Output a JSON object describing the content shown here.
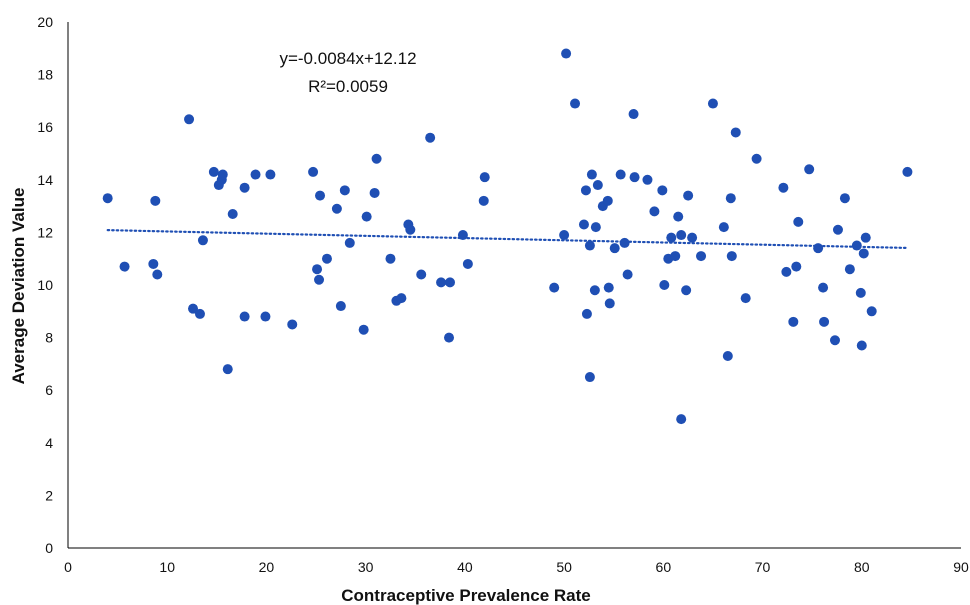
{
  "chart_data": {
    "type": "scatter",
    "xlabel": "Contraceptive Prevalence Rate",
    "ylabel": "Average Deviation Value",
    "xlim": [
      0,
      90
    ],
    "ylim": [
      0,
      20
    ],
    "x_ticks": [
      0,
      10,
      20,
      30,
      40,
      50,
      60,
      70,
      80,
      90
    ],
    "y_ticks": [
      0,
      2,
      4,
      6,
      8,
      10,
      12,
      14,
      16,
      18,
      20
    ],
    "x_tick_labels": [
      "0",
      "10",
      "20",
      "30",
      "40",
      "50",
      "60",
      "70",
      "80",
      "90"
    ],
    "y_tick_labels": [
      "0",
      "2",
      "4",
      "6",
      "8",
      "10",
      "12",
      "14",
      "16",
      "18",
      "20"
    ],
    "grid": false,
    "legend": "none",
    "marker_color": "#1f4fb4",
    "trendline": {
      "type": "linear",
      "slope": -0.0084,
      "intercept": 12.12,
      "x_range": [
        4,
        84.6
      ],
      "style": "dotted",
      "color": "#1f4fb4"
    },
    "annotations": {
      "equation": "y=-0.0084x+12.12",
      "r_squared": "R²=0.0059"
    },
    "points": [
      [
        4.0,
        13.3
      ],
      [
        5.7,
        10.7
      ],
      [
        8.6,
        10.8
      ],
      [
        8.8,
        13.2
      ],
      [
        9.0,
        10.4
      ],
      [
        12.2,
        16.3
      ],
      [
        12.6,
        9.1
      ],
      [
        13.3,
        8.9
      ],
      [
        13.6,
        11.7
      ],
      [
        14.7,
        14.3
      ],
      [
        15.2,
        13.8
      ],
      [
        15.5,
        14.0
      ],
      [
        15.6,
        14.2
      ],
      [
        16.1,
        6.8
      ],
      [
        16.6,
        12.7
      ],
      [
        17.8,
        8.8
      ],
      [
        17.8,
        13.7
      ],
      [
        18.9,
        14.2
      ],
      [
        19.9,
        8.8
      ],
      [
        20.4,
        14.2
      ],
      [
        22.6,
        8.5
      ],
      [
        24.7,
        14.3
      ],
      [
        25.1,
        10.6
      ],
      [
        25.3,
        10.2
      ],
      [
        25.4,
        13.4
      ],
      [
        26.1,
        11.0
      ],
      [
        27.1,
        12.9
      ],
      [
        27.5,
        9.2
      ],
      [
        27.9,
        13.6
      ],
      [
        28.4,
        11.6
      ],
      [
        29.8,
        8.3
      ],
      [
        30.1,
        12.6
      ],
      [
        30.9,
        13.5
      ],
      [
        31.1,
        14.8
      ],
      [
        32.5,
        11.0
      ],
      [
        33.1,
        9.4
      ],
      [
        33.6,
        9.5
      ],
      [
        34.3,
        12.3
      ],
      [
        34.5,
        12.1
      ],
      [
        35.6,
        10.4
      ],
      [
        36.5,
        15.6
      ],
      [
        37.6,
        10.1
      ],
      [
        38.4,
        8.0
      ],
      [
        38.5,
        10.1
      ],
      [
        39.8,
        11.9
      ],
      [
        40.3,
        10.8
      ],
      [
        41.9,
        13.2
      ],
      [
        42.0,
        14.1
      ],
      [
        49.0,
        9.9
      ],
      [
        50.0,
        11.9
      ],
      [
        50.2,
        18.8
      ],
      [
        51.1,
        16.9
      ],
      [
        52.0,
        12.3
      ],
      [
        52.2,
        13.6
      ],
      [
        52.3,
        8.9
      ],
      [
        52.6,
        11.5
      ],
      [
        52.8,
        14.2
      ],
      [
        52.6,
        6.5
      ],
      [
        53.1,
        9.8
      ],
      [
        53.2,
        12.2
      ],
      [
        53.4,
        13.8
      ],
      [
        53.9,
        13.0
      ],
      [
        54.4,
        13.2
      ],
      [
        54.5,
        9.9
      ],
      [
        54.6,
        9.3
      ],
      [
        55.1,
        11.4
      ],
      [
        55.7,
        14.2
      ],
      [
        56.1,
        11.6
      ],
      [
        56.4,
        10.4
      ],
      [
        57.0,
        16.5
      ],
      [
        57.1,
        14.1
      ],
      [
        58.4,
        14.0
      ],
      [
        59.1,
        12.8
      ],
      [
        59.9,
        13.6
      ],
      [
        60.1,
        10.0
      ],
      [
        60.5,
        11.0
      ],
      [
        60.8,
        11.8
      ],
      [
        61.2,
        11.1
      ],
      [
        61.5,
        12.6
      ],
      [
        61.8,
        11.9
      ],
      [
        61.8,
        4.9
      ],
      [
        62.3,
        9.8
      ],
      [
        62.5,
        13.4
      ],
      [
        62.9,
        11.8
      ],
      [
        63.8,
        11.1
      ],
      [
        65.0,
        16.9
      ],
      [
        66.1,
        12.2
      ],
      [
        66.5,
        7.3
      ],
      [
        66.8,
        13.3
      ],
      [
        66.9,
        11.1
      ],
      [
        67.3,
        15.8
      ],
      [
        68.3,
        9.5
      ],
      [
        69.4,
        14.8
      ],
      [
        72.1,
        13.7
      ],
      [
        72.4,
        10.5
      ],
      [
        73.1,
        8.6
      ],
      [
        73.4,
        10.7
      ],
      [
        73.6,
        12.4
      ],
      [
        74.7,
        14.4
      ],
      [
        75.6,
        11.4
      ],
      [
        76.1,
        9.9
      ],
      [
        76.2,
        8.6
      ],
      [
        77.3,
        7.9
      ],
      [
        77.6,
        12.1
      ],
      [
        78.3,
        13.3
      ],
      [
        78.8,
        10.6
      ],
      [
        79.5,
        11.5
      ],
      [
        79.9,
        9.7
      ],
      [
        80.0,
        7.7
      ],
      [
        80.2,
        11.2
      ],
      [
        80.4,
        11.8
      ],
      [
        81.0,
        9.0
      ],
      [
        84.6,
        14.3
      ]
    ]
  }
}
